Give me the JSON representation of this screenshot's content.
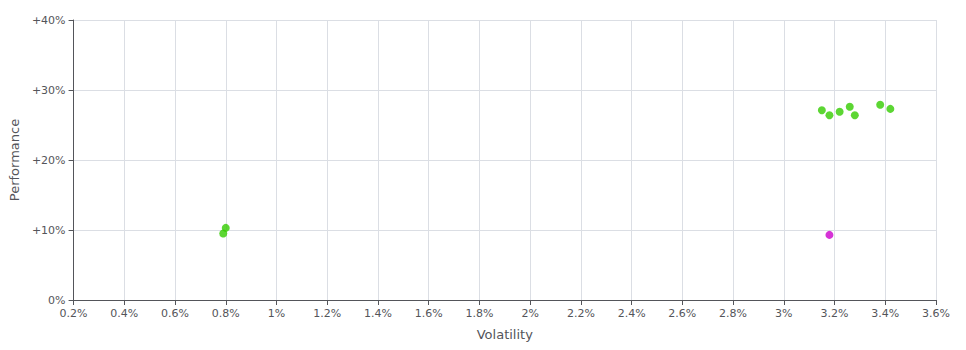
{
  "chart_data": {
    "type": "scatter",
    "xlabel": "Volatility",
    "ylabel": "Performance",
    "xlim": [
      0.002,
      0.036
    ],
    "ylim": [
      0.0,
      0.4
    ],
    "xticks": [
      {
        "value": 0.002,
        "label": "0.2%"
      },
      {
        "value": 0.004,
        "label": "0.4%"
      },
      {
        "value": 0.006,
        "label": "0.6%"
      },
      {
        "value": 0.008,
        "label": "0.8%"
      },
      {
        "value": 0.01,
        "label": "1%"
      },
      {
        "value": 0.012,
        "label": "1.2%"
      },
      {
        "value": 0.014,
        "label": "1.4%"
      },
      {
        "value": 0.016,
        "label": "1.6%"
      },
      {
        "value": 0.018,
        "label": "1.8%"
      },
      {
        "value": 0.02,
        "label": "2%"
      },
      {
        "value": 0.022,
        "label": "2.2%"
      },
      {
        "value": 0.024,
        "label": "2.4%"
      },
      {
        "value": 0.026,
        "label": "2.6%"
      },
      {
        "value": 0.028,
        "label": "2.8%"
      },
      {
        "value": 0.03,
        "label": "3%"
      },
      {
        "value": 0.032,
        "label": "3.2%"
      },
      {
        "value": 0.034,
        "label": "3.4%"
      },
      {
        "value": 0.036,
        "label": "3.6%"
      }
    ],
    "yticks": [
      {
        "value": 0.0,
        "label": "0%"
      },
      {
        "value": 0.1,
        "label": "+10%"
      },
      {
        "value": 0.2,
        "label": "+20%"
      },
      {
        "value": 0.3,
        "label": "+30%"
      },
      {
        "value": 0.4,
        "label": "+40%"
      }
    ],
    "grid": true,
    "series": [
      {
        "color": "#33cc00",
        "x": [
          0.008,
          0.0079,
          0.0315,
          0.0318,
          0.0322,
          0.0326,
          0.0328,
          0.0338,
          0.0342
        ],
        "values": [
          0.103,
          0.095,
          0.271,
          0.264,
          0.269,
          0.276,
          0.264,
          0.279,
          0.273
        ]
      },
      {
        "color": "#cc00cc",
        "x": [
          0.0318
        ],
        "values": [
          0.093
        ]
      }
    ]
  }
}
